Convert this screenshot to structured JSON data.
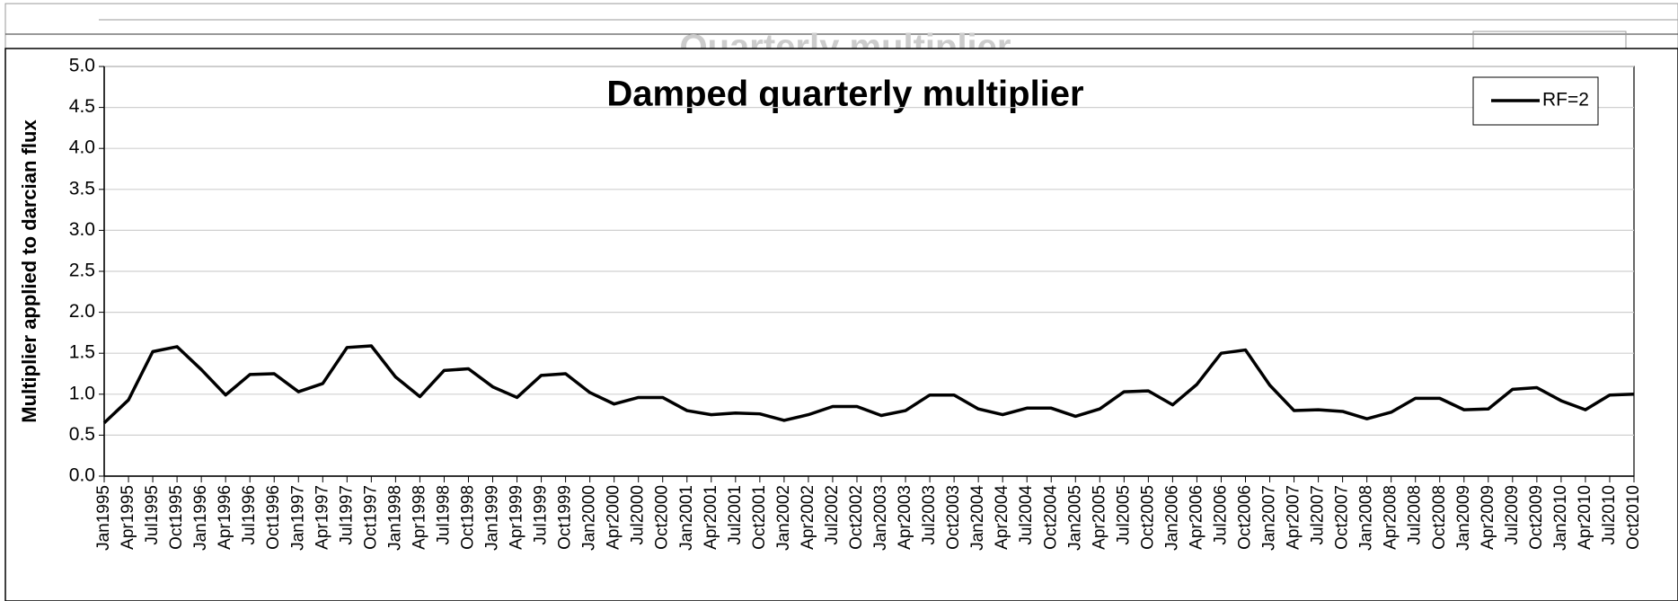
{
  "background_chart": {
    "title": "Quarterly multiplier"
  },
  "chart_data": {
    "type": "line",
    "title": "Damped quarterly multiplier",
    "y_label": "Multiplier applied to darcian flux",
    "categories": [
      "Jan1995",
      "Apr1995",
      "Jul1995",
      "Oct1995",
      "Jan1996",
      "Apr1996",
      "Jul1996",
      "Oct1996",
      "Jan1997",
      "Apr1997",
      "Jul1997",
      "Oct1997",
      "Jan1998",
      "Apr1998",
      "Jul1998",
      "Oct1998",
      "Jan1999",
      "Apr1999",
      "Jul1999",
      "Oct1999",
      "Jan2000",
      "Apr2000",
      "Jul2000",
      "Oct2000",
      "Jan2001",
      "Apr2001",
      "Jul2001",
      "Oct2001",
      "Jan2002",
      "Apr2002",
      "Jul2002",
      "Oct2002",
      "Jan2003",
      "Apr2003",
      "Jul2003",
      "Oct2003",
      "Jan2004",
      "Apr2004",
      "Jul2004",
      "Oct2004",
      "Jan2005",
      "Apr2005",
      "Jul2005",
      "Oct2005",
      "Jan2006",
      "Apr2006",
      "Jul2006",
      "Oct2006",
      "Jan2007",
      "Apr2007",
      "Jul2007",
      "Oct2007",
      "Jan2008",
      "Apr2008",
      "Jul2008",
      "Oct2008",
      "Jan2009",
      "Apr2009",
      "Jul2009",
      "Oct2009",
      "Jan2010",
      "Apr2010",
      "Jul2010",
      "Oct2010"
    ],
    "series": [
      {
        "name": "RF=2",
        "color": "#000000",
        "values": [
          0.65,
          0.93,
          1.52,
          1.58,
          1.3,
          0.99,
          1.24,
          1.25,
          1.03,
          1.13,
          1.57,
          1.59,
          1.21,
          0.97,
          1.29,
          1.31,
          1.09,
          0.96,
          1.23,
          1.25,
          1.02,
          0.88,
          0.96,
          0.96,
          0.8,
          0.75,
          0.77,
          0.76,
          0.68,
          0.75,
          0.85,
          0.85,
          0.74,
          0.8,
          0.99,
          0.99,
          0.82,
          0.75,
          0.83,
          0.83,
          0.73,
          0.82,
          1.03,
          1.04,
          0.87,
          1.12,
          1.5,
          1.54,
          1.11,
          0.8,
          0.81,
          0.79,
          0.7,
          0.78,
          0.95,
          0.95,
          0.81,
          0.82,
          1.06,
          1.08,
          0.92,
          0.81,
          0.99,
          1.0
        ]
      }
    ],
    "ylim": [
      0,
      5
    ],
    "yticks": [
      {
        "value": 0,
        "label": "0.0"
      },
      0.5,
      {
        "value": 1,
        "label": "1.0"
      },
      1.5,
      {
        "value": 2,
        "label": "2.0"
      },
      2.5,
      {
        "value": 3,
        "label": "3.0"
      },
      3.5,
      {
        "value": 4,
        "label": "4.0"
      },
      4.5,
      {
        "value": 5,
        "label": "5.0"
      }
    ],
    "grid": true,
    "legend": "upper right"
  }
}
